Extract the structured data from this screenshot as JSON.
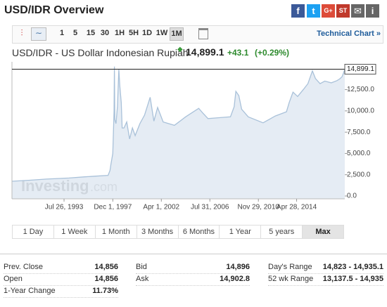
{
  "header": {
    "title": "USD/IDR Overview",
    "share": [
      "f",
      "t",
      "G+",
      "ST",
      "i"
    ]
  },
  "toolbar": {
    "intervals": [
      "1",
      "5",
      "15",
      "30",
      "1H",
      "5H",
      "1D",
      "1W",
      "1M"
    ],
    "selected": 8,
    "link": "Technical Chart »"
  },
  "quote": {
    "name": "USD/IDR - US Dollar Indonesian Rupiah",
    "last": "14,899.1",
    "change": "+43.1",
    "change_pct": "(+0.29%)"
  },
  "chart_data": {
    "type": "area",
    "color": "#a9c1d9",
    "fill": "#e0e9f2",
    "watermark": [
      "Investing",
      ".com"
    ],
    "x": [
      "1988-12-01",
      "1990-06-01",
      "1992-01-01",
      "1994-01-01",
      "1995-06-01",
      "1996-06-01",
      "1997-07-01",
      "1997-09-01",
      "1997-10-01",
      "1997-12-01",
      "1998-01-10",
      "1998-01-22",
      "1998-02-05",
      "1998-03-15",
      "1998-05-01",
      "1998-06-17",
      "1998-07-15",
      "1998-09-01",
      "1998-10-01",
      "1998-12-01",
      "1999-03-01",
      "1999-06-01",
      "1999-09-01",
      "1999-12-01",
      "2000-05-01",
      "2000-10-01",
      "2001-04-01",
      "2001-08-01",
      "2001-12-01",
      "2002-06-01",
      "2003-06-01",
      "2004-06-01",
      "2005-08-01",
      "2005-12-01",
      "2006-06-01",
      "2007-06-01",
      "2008-06-01",
      "2008-10-01",
      "2008-11-25",
      "2009-03-01",
      "2009-06-01",
      "2010-01-01",
      "2011-05-01",
      "2012-06-01",
      "2013-06-01",
      "2013-09-01",
      "2014-01-01",
      "2014-06-01",
      "2014-12-01",
      "2015-05-01",
      "2015-09-25",
      "2016-01-01",
      "2016-06-01",
      "2016-11-01",
      "2017-06-01",
      "2017-12-01",
      "2018-03-01",
      "2018-05-15",
      "2018-07-01",
      "2018-08-15"
    ],
    "values": [
      1730,
      1850,
      1990,
      2110,
      2250,
      2340,
      2430,
      3000,
      3700,
      5000,
      10000,
      15200,
      9000,
      8500,
      10500,
      14900,
      13000,
      11000,
      8000,
      8000,
      8700,
      6700,
      8000,
      7100,
      8500,
      9500,
      11600,
      8800,
      10400,
      8700,
      8300,
      9300,
      10300,
      9800,
      9100,
      9200,
      9300,
      10500,
      12300,
      11800,
      10200,
      9300,
      8600,
      9400,
      9900,
      11000,
      12200,
      11700,
      12500,
      13200,
      14700,
      13800,
      13200,
      13500,
      13300,
      13550,
      13750,
      14000,
      14400,
      14899.1
    ],
    "xlim": [
      "1988-12-01",
      "2018-08-15"
    ],
    "xticks": [
      {
        "value": "1993-07-26",
        "label": "Jul 26, 1993"
      },
      {
        "value": "1997-12-01",
        "label": "Dec 1, 1997"
      },
      {
        "value": "2002-04-01",
        "label": "Apr 1, 2002"
      },
      {
        "value": "2006-07-31",
        "label": "Jul 31, 2006"
      },
      {
        "value": "2010-11-29",
        "label": "Nov 29, 2010"
      },
      {
        "value": "2014-04-28",
        "label": "Apr 28, 2014"
      }
    ],
    "ylim": [
      0,
      15600
    ],
    "yticks": [
      {
        "value": 12500,
        "label": "12,500.0"
      },
      {
        "value": 10000,
        "label": "10,000.0"
      },
      {
        "value": 7500,
        "label": "7,500.0"
      },
      {
        "value": 5000,
        "label": "5,000.0"
      },
      {
        "value": 2500,
        "label": "2,500.0"
      },
      {
        "value": 0,
        "label": "0.0"
      }
    ],
    "price_marker": {
      "value": 14899.1,
      "label": "14,899.1"
    }
  },
  "ranges": {
    "buttons": [
      "1 Day",
      "1 Week",
      "1 Month",
      "3 Months",
      "6 Months",
      "1 Year",
      "5 years",
      "Max"
    ],
    "selected": 7
  },
  "stats": [
    [
      {
        "label": "Prev. Close",
        "value": "14,856"
      },
      {
        "label": "Bid",
        "value": "14,896"
      },
      {
        "label": "Day's Range",
        "value": "14,823 - 14,935.1"
      }
    ],
    [
      {
        "label": "Open",
        "value": "14,856"
      },
      {
        "label": "Ask",
        "value": "14,902.8"
      },
      {
        "label": "52 wk Range",
        "value": "13,137.5 - 14,935"
      }
    ],
    [
      {
        "label": "1-Year Change",
        "value": "11.73%"
      }
    ]
  ]
}
